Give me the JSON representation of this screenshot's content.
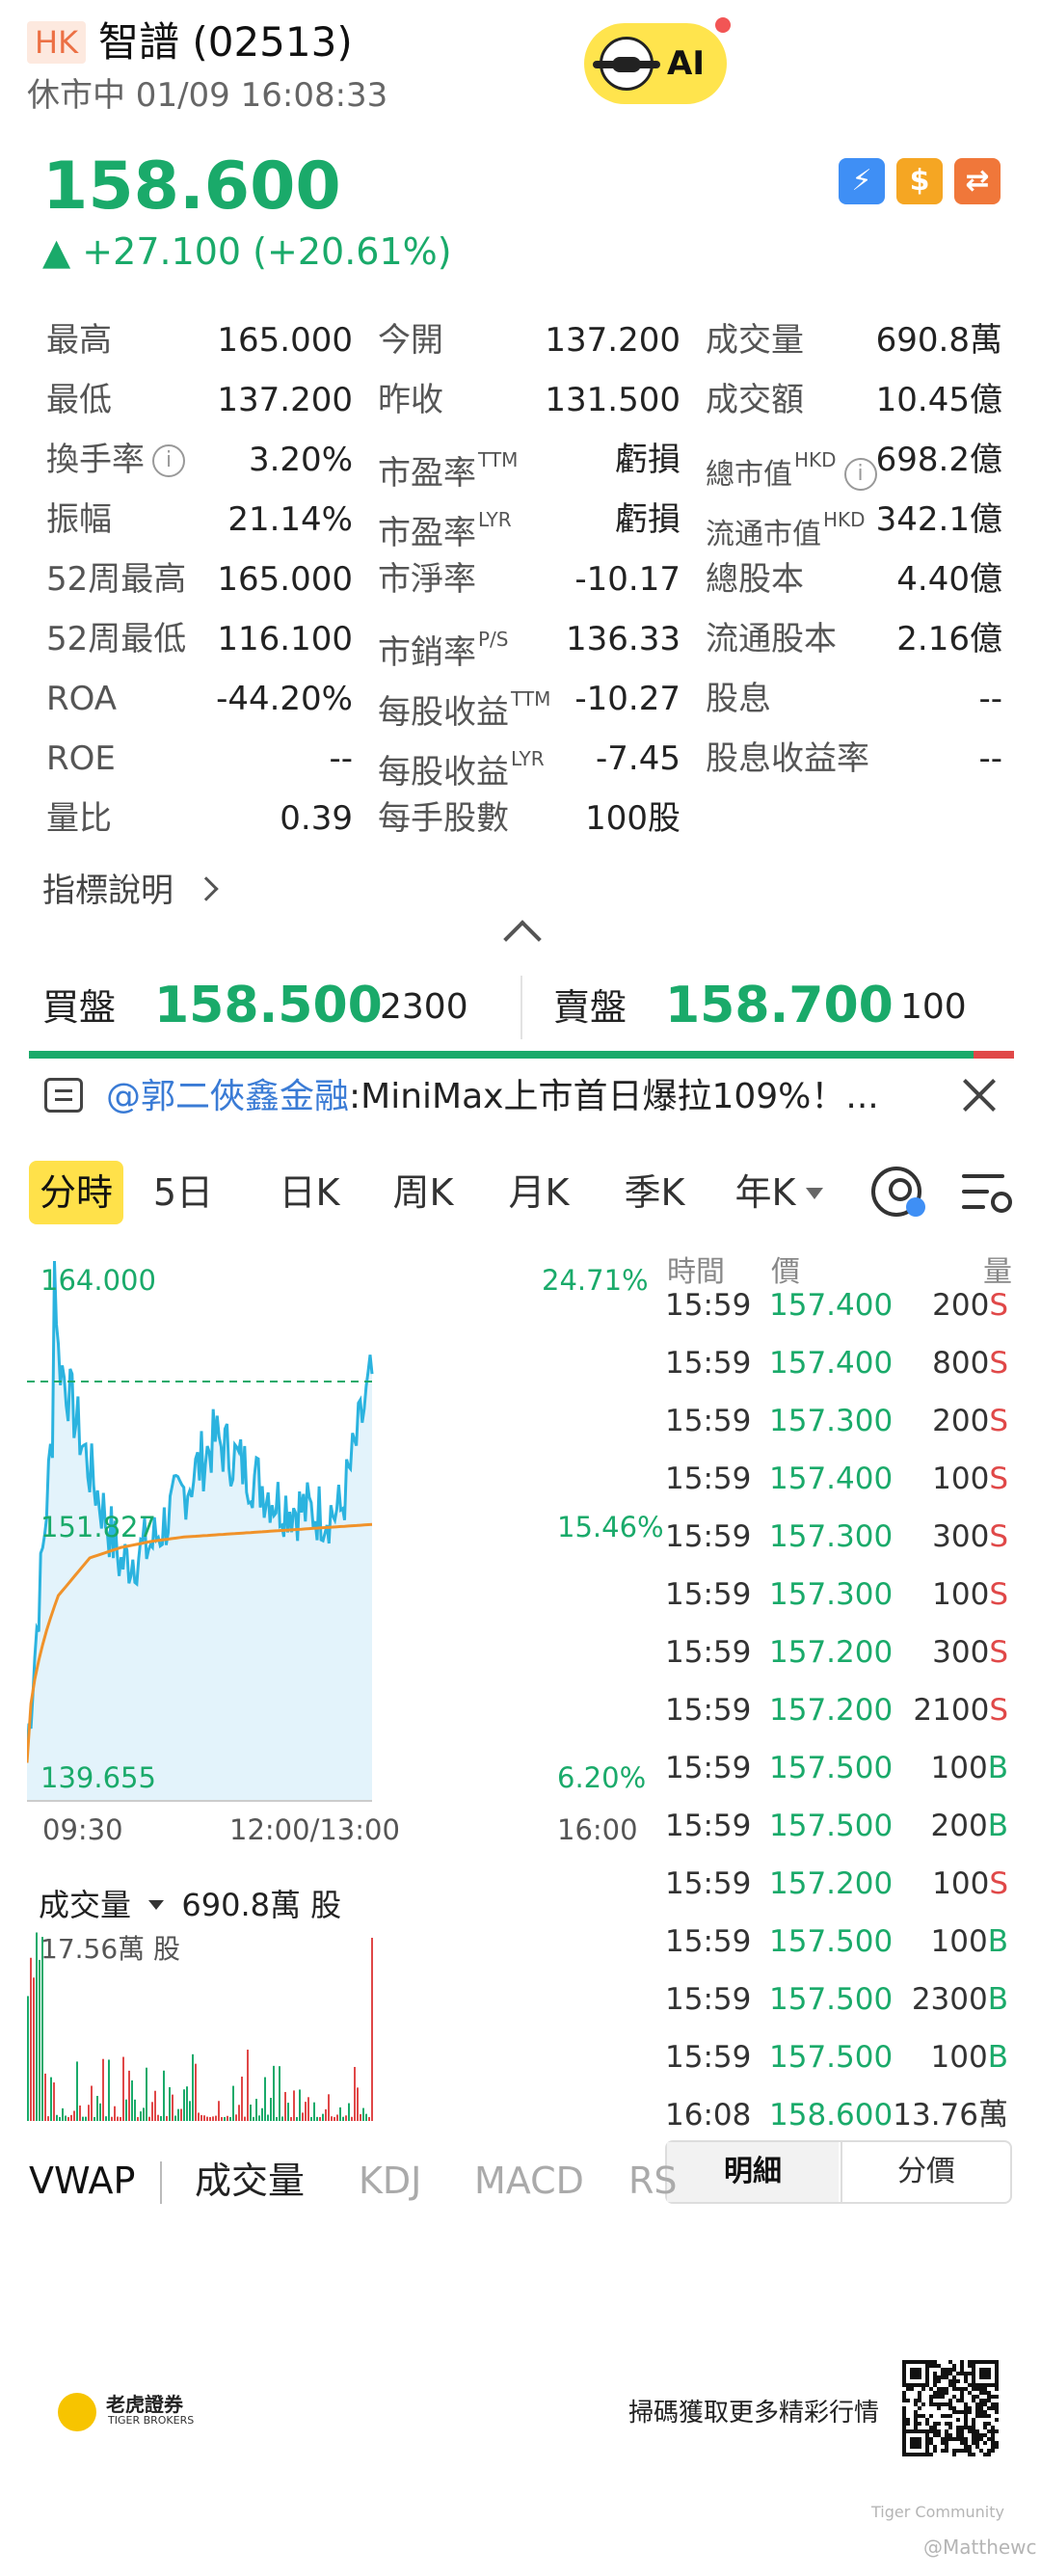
{
  "header": {
    "market_badge": "HK",
    "title": "智譜 (02513)",
    "status_line": "休市中 01/09 16:08:33",
    "ai_label": "AI",
    "last_price": "158.600",
    "change": "▲ +27.100 (+20.61%)"
  },
  "icons": {
    "lightning": "lightning-icon",
    "dollar": "$",
    "swap": "swap-icon"
  },
  "stats": {
    "col1": [
      {
        "label": "最高",
        "value": "165.000"
      },
      {
        "label": "最低",
        "value": "137.200"
      },
      {
        "label": "換手率",
        "value": "3.20%"
      },
      {
        "label": "振幅",
        "value": "21.14%"
      },
      {
        "label": "52周最高",
        "value": "165.000"
      },
      {
        "label": "52周最低",
        "value": "116.100"
      },
      {
        "label": "ROA",
        "value": "-44.20%"
      },
      {
        "label": "ROE",
        "value": "--"
      },
      {
        "label": "量比",
        "value": "0.39"
      }
    ],
    "col2": [
      {
        "label": "今開",
        "sup": "",
        "value": "137.200"
      },
      {
        "label": "昨收",
        "sup": "",
        "value": "131.500"
      },
      {
        "label": "市盈率",
        "sup": "TTM",
        "value": "虧損"
      },
      {
        "label": "市盈率",
        "sup": "LYR",
        "value": "虧損"
      },
      {
        "label": "市淨率",
        "sup": "",
        "value": "-10.17"
      },
      {
        "label": "市銷率",
        "sup": "P/S",
        "value": "136.33"
      },
      {
        "label": "每股收益",
        "sup": "TTM",
        "value": "-10.27"
      },
      {
        "label": "每股收益",
        "sup": "LYR",
        "value": "-7.45"
      },
      {
        "label": "每手股數",
        "sup": "",
        "value": "100股"
      }
    ],
    "col3": [
      {
        "label": "成交量",
        "sup": "",
        "value": "690.8萬"
      },
      {
        "label": "成交額",
        "sup": "",
        "value": "10.45億"
      },
      {
        "label": "總市值",
        "sup": "HKD",
        "value": "698.2億"
      },
      {
        "label": "流通市值",
        "sup": "HKD",
        "value": "342.1億"
      },
      {
        "label": "總股本",
        "sup": "",
        "value": "4.40億"
      },
      {
        "label": "流通股本",
        "sup": "",
        "value": "2.16億"
      },
      {
        "label": "股息",
        "sup": "",
        "value": "--"
      },
      {
        "label": "股息收益率",
        "sup": "",
        "value": "--"
      }
    ],
    "info_glyph": "i",
    "indicator_link": "指標說明"
  },
  "order_book": {
    "bid_label": "買盤",
    "bid_price": "158.500",
    "bid_volume": "2300",
    "ask_label": "賣盤",
    "ask_price": "158.700",
    "ask_volume": "100",
    "bid_share": 0.96
  },
  "news": {
    "mention": "@郭二俠鑫金融",
    "text": ":MiniMax上市首日爆拉109%！..."
  },
  "period_tabs": [
    "分時",
    "5日",
    "日K",
    "周K",
    "月K",
    "季K",
    "年K"
  ],
  "chart": {
    "price_high_label": "164.000",
    "price_mid_label": "151.827",
    "price_low_label": "139.655",
    "pct_high_label": "24.71%",
    "pct_mid_label": "15.46%",
    "pct_low_label": "6.20%",
    "time_labels": [
      "09:30",
      "12:00/13:00",
      "16:00"
    ],
    "volume_title": "成交量",
    "volume_total": "690.8萬 股",
    "volume_max_label": "17.56萬 股"
  },
  "chart_data": {
    "type": "line",
    "title": "",
    "ylim": [
      139.655,
      164.0
    ],
    "prev_close": 131.5,
    "x": [
      "09:30",
      "10:00",
      "10:30",
      "11:00",
      "11:30",
      "12:00/13:00",
      "13:30",
      "14:00",
      "14:30",
      "15:00",
      "15:30",
      "16:00"
    ],
    "series": [
      {
        "name": "",
        "values": [
          140.5,
          159.5,
          154.0,
          149.5,
          150.5,
          153.0,
          155.5,
          154.0,
          152.5,
          152.0,
          152.0,
          158.6
        ]
      },
      {
        "name": "VWAP",
        "values": [
          140.0,
          148.0,
          149.8,
          150.3,
          150.6,
          150.8,
          150.9,
          151.0,
          151.1,
          151.2,
          151.3,
          151.4
        ]
      }
    ]
  },
  "trades": {
    "headers": {
      "time": "時間",
      "price": "價",
      "volume": "量"
    },
    "rows": [
      {
        "time": "15:59",
        "price": "157.400",
        "vol": "200",
        "side": "S"
      },
      {
        "time": "15:59",
        "price": "157.400",
        "vol": "800",
        "side": "S"
      },
      {
        "time": "15:59",
        "price": "157.300",
        "vol": "200",
        "side": "S"
      },
      {
        "time": "15:59",
        "price": "157.400",
        "vol": "100",
        "side": "S"
      },
      {
        "time": "15:59",
        "price": "157.300",
        "vol": "300",
        "side": "S"
      },
      {
        "time": "15:59",
        "price": "157.300",
        "vol": "100",
        "side": "S"
      },
      {
        "time": "15:59",
        "price": "157.200",
        "vol": "300",
        "side": "S"
      },
      {
        "time": "15:59",
        "price": "157.200",
        "vol": "2100",
        "side": "S"
      },
      {
        "time": "15:59",
        "price": "157.500",
        "vol": "100",
        "side": "B"
      },
      {
        "time": "15:59",
        "price": "157.500",
        "vol": "200",
        "side": "B"
      },
      {
        "time": "15:59",
        "price": "157.200",
        "vol": "100",
        "side": "S"
      },
      {
        "time": "15:59",
        "price": "157.500",
        "vol": "100",
        "side": "B"
      },
      {
        "time": "15:59",
        "price": "157.500",
        "vol": "2300",
        "side": "B"
      },
      {
        "time": "15:59",
        "price": "157.500",
        "vol": "100",
        "side": "B"
      },
      {
        "time": "16:08",
        "price": "158.600",
        "vol": "13.76萬",
        "side": ""
      }
    ],
    "tab_detail": "明細",
    "tab_price": "分價"
  },
  "indicator_tabs": [
    "VWAP",
    "成交量",
    "KDJ",
    "MACD",
    "RS"
  ],
  "footer": {
    "brand": "老虎證券",
    "brand_en": "TIGER BROKERS",
    "scan_text": "掃碼獲取更多精彩行情",
    "watermark": "Tiger Community",
    "watermark_user": "@Matthewc"
  },
  "colors": {
    "up": "#1aaa6a",
    "down": "#e04848",
    "price_line": "#2bb3df",
    "vwap_line": "#f0922a",
    "highlight": "#ffe14a"
  }
}
